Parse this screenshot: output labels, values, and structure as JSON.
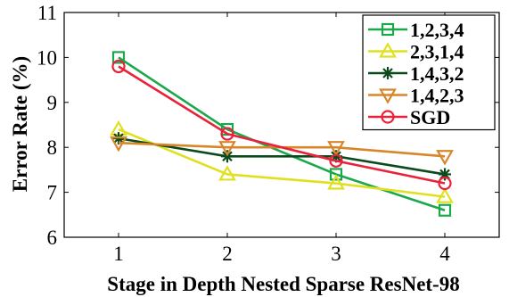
{
  "chart_data": {
    "type": "line",
    "title": "",
    "xlabel": "Stage in Depth Nested Sparse ResNet-98",
    "ylabel": "Error Rate (%)",
    "x": [
      1,
      2,
      3,
      4
    ],
    "xlim": [
      0.5,
      4.5
    ],
    "ylim": [
      6,
      11
    ],
    "xticks": [
      "1",
      "2",
      "3",
      "4"
    ],
    "yticks": [
      "6",
      "7",
      "8",
      "9",
      "10",
      "11"
    ],
    "grid": false,
    "legend_position": "top-right",
    "series": [
      {
        "name": "1,2,3,4",
        "values": [
          10.0,
          8.4,
          7.4,
          6.6
        ],
        "color": "#1aa84b",
        "marker": "square"
      },
      {
        "name": "2,3,1,4",
        "values": [
          8.4,
          7.4,
          7.2,
          6.9
        ],
        "color": "#e0e020",
        "marker": "triangle-up"
      },
      {
        "name": "1,4,3,2",
        "values": [
          8.2,
          7.8,
          7.8,
          7.4
        ],
        "color": "#0b4a1c",
        "marker": "asterisk"
      },
      {
        "name": "1,4,2,3",
        "values": [
          8.1,
          8.0,
          8.0,
          7.8
        ],
        "color": "#d8862a",
        "marker": "triangle-down"
      },
      {
        "name": "SGD",
        "values": [
          9.8,
          8.3,
          7.7,
          7.2
        ],
        "color": "#e8223a",
        "marker": "circle"
      }
    ]
  }
}
